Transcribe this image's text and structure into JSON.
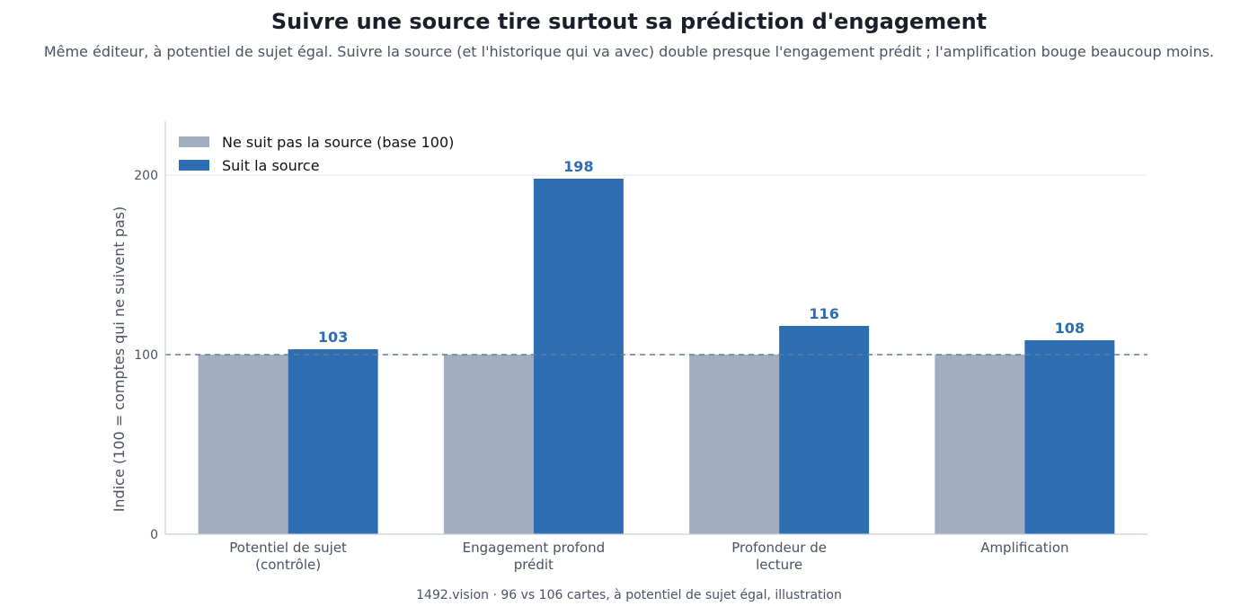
{
  "header": {
    "title": "Suivre une source tire surtout sa prédiction d'engagement",
    "subtitle": "Même éditeur, à potentiel de sujet égal. Suivre la source (et l'historique qui va avec) double presque l'engagement prédit ; l'amplification bouge beaucoup moins."
  },
  "footer": {
    "text": "1492.vision  ·  96 vs 106 cartes, à potentiel de sujet égal, illustration"
  },
  "colors": {
    "baseline_bar": "#a2aec0",
    "follow_bar": "#2d6db1",
    "value_label": "#2d6db1",
    "reference_line": "#6a7a92",
    "axis": "#c6cfdb",
    "grid": "#e3e8ef"
  },
  "chart_data": {
    "type": "bar",
    "title": "Suivre une source tire surtout sa prédiction d'engagement",
    "ylabel": "Indice (100 = comptes qui ne suivent pas)",
    "xlabel": "",
    "ylim": [
      0,
      230
    ],
    "yticks": [
      0,
      100,
      200
    ],
    "reference_line": 100,
    "grid": "horizontal",
    "legend_position": "top-left",
    "categories": [
      [
        "Potentiel de sujet",
        "(contrôle)"
      ],
      [
        "Engagement profond",
        "prédit"
      ],
      [
        "Profondeur de",
        "lecture"
      ],
      [
        "Amplification"
      ]
    ],
    "series": [
      {
        "name": "Ne suit pas la source (base 100)",
        "values": [
          100,
          100,
          100,
          100
        ],
        "show_labels": false
      },
      {
        "name": "Suit la source",
        "values": [
          103,
          198,
          116,
          108
        ],
        "show_labels": true
      }
    ]
  }
}
